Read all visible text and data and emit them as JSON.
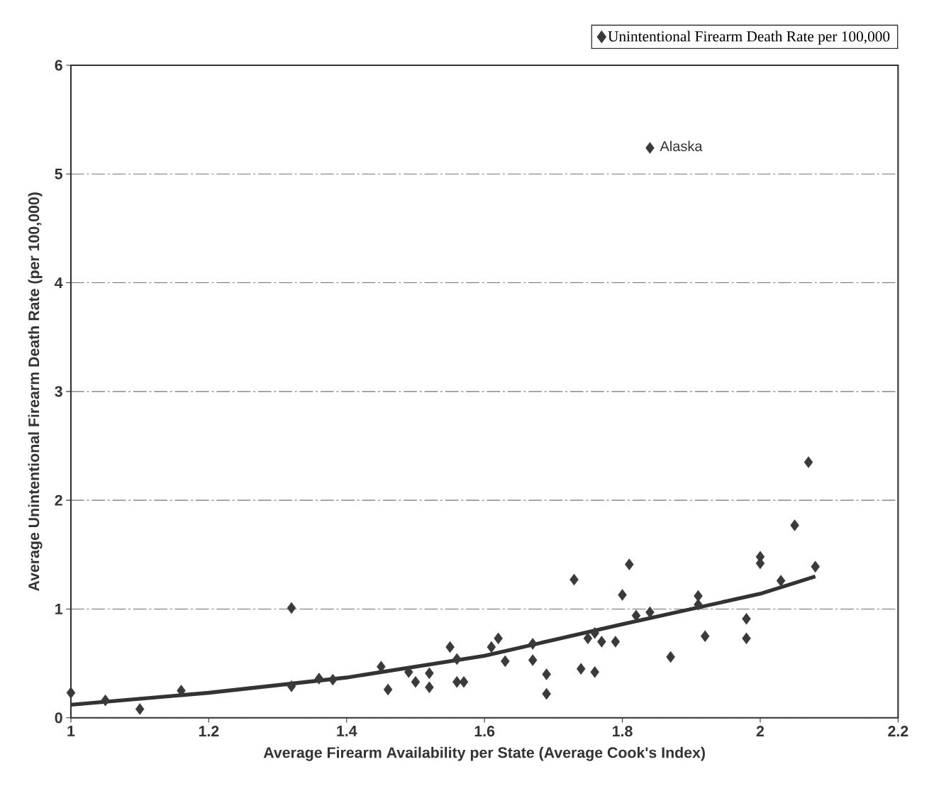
{
  "chart_data": {
    "type": "scatter",
    "xlabel": "Average Firearm Availability per State (Average Cook's Index)",
    "ylabel": "Average Unintentional Firearm Death Rate (per 100,000)",
    "xlim": [
      1,
      2.2
    ],
    "xticks": [
      1,
      1.2,
      1.4,
      1.6,
      1.8,
      2,
      2.2
    ],
    "ylim": [
      0,
      6
    ],
    "yticks": [
      0,
      1,
      2,
      3,
      4,
      5,
      6
    ],
    "grid": "y",
    "legend": "top right",
    "series": [
      {
        "name": "Unintentional Firearm Death Rate per 100,000",
        "marker": "diamond",
        "color": "#3a3a3a",
        "x": [
          1.0,
          1.05,
          1.1,
          1.16,
          1.32,
          1.32,
          1.36,
          1.38,
          1.45,
          1.46,
          1.49,
          1.5,
          1.52,
          1.52,
          1.55,
          1.56,
          1.56,
          1.57,
          1.61,
          1.62,
          1.63,
          1.67,
          1.67,
          1.69,
          1.69,
          1.73,
          1.74,
          1.76,
          1.75,
          1.76,
          1.77,
          1.79,
          1.8,
          1.81,
          1.82,
          1.84,
          1.84,
          1.87,
          1.91,
          1.91,
          1.92,
          1.98,
          1.98,
          2.0,
          2.0,
          2.03,
          2.05,
          2.07,
          2.08
        ],
        "values": [
          0.23,
          0.16,
          0.08,
          0.25,
          1.01,
          0.29,
          0.36,
          0.35,
          0.47,
          0.26,
          0.42,
          0.33,
          0.28,
          0.41,
          0.65,
          0.54,
          0.33,
          0.33,
          0.65,
          0.73,
          0.52,
          0.68,
          0.53,
          0.4,
          0.22,
          1.27,
          0.45,
          0.42,
          0.73,
          0.78,
          0.7,
          0.7,
          1.13,
          1.41,
          0.94,
          0.97,
          5.24,
          0.56,
          1.12,
          1.04,
          0.75,
          0.91,
          0.73,
          1.48,
          1.42,
          1.26,
          1.77,
          2.35,
          1.39
        ]
      },
      {
        "type": "line",
        "marker": "none",
        "color": "#333333",
        "x": [
          1.0,
          1.2,
          1.4,
          1.6,
          1.8,
          2.0,
          2.08
        ],
        "values": [
          0.12,
          0.23,
          0.37,
          0.57,
          0.86,
          1.14,
          1.3
        ]
      }
    ],
    "annotations": [
      {
        "text": "Alaska",
        "x": 1.84,
        "y": 5.24
      }
    ]
  }
}
